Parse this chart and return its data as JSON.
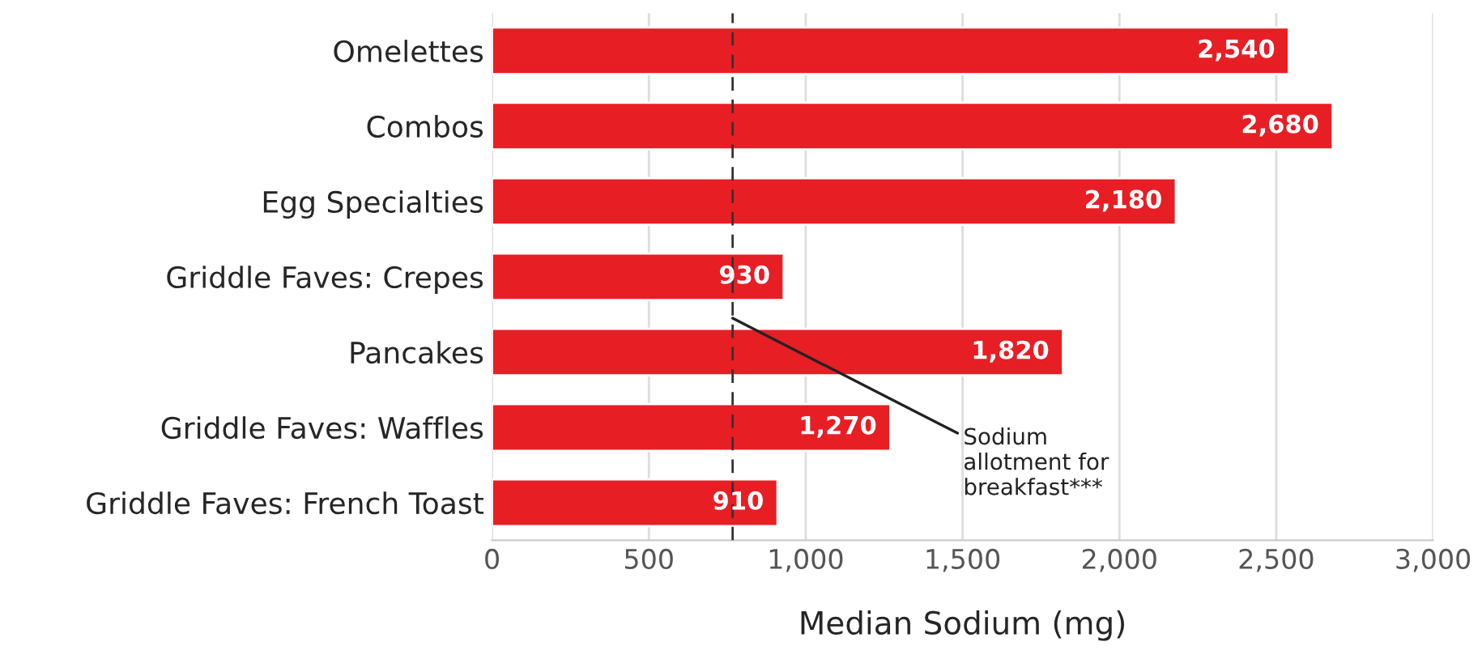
{
  "chart_data": {
    "type": "bar",
    "orientation": "horizontal",
    "xlabel": "Median Sodium (mg)",
    "categories": [
      "Omelettes",
      "Combos",
      "Egg Specialties",
      "Griddle Faves: Crepes",
      "Pancakes",
      "Griddle Faves: Waffles",
      "Griddle Faves: French Toast"
    ],
    "values": [
      2540,
      2680,
      2180,
      930,
      1820,
      1270,
      910
    ],
    "color": "#e81e25",
    "value_labels": [
      "2,540",
      "2,680",
      "2,180",
      "930",
      "1,820",
      "1,270",
      "910"
    ],
    "xlim": [
      0,
      3000
    ],
    "xticks": [
      0,
      {
        "value": 500,
        "label": "500"
      },
      {
        "value": 1000,
        "label": "1,000"
      },
      {
        "value": 1500,
        "label": "1,500"
      },
      {
        "value": 2000,
        "label": "2,000"
      },
      {
        "value": 2500,
        "label": "2,500"
      },
      {
        "value": 3000,
        "label": "3,000"
      }
    ],
    "grid": "x",
    "ref_lines": [
      {
        "axis": "x",
        "value": 767,
        "label": "Sodium\nallotment for\nbreakfast***",
        "color": "#333333",
        "line_style": "dashed"
      }
    ]
  }
}
